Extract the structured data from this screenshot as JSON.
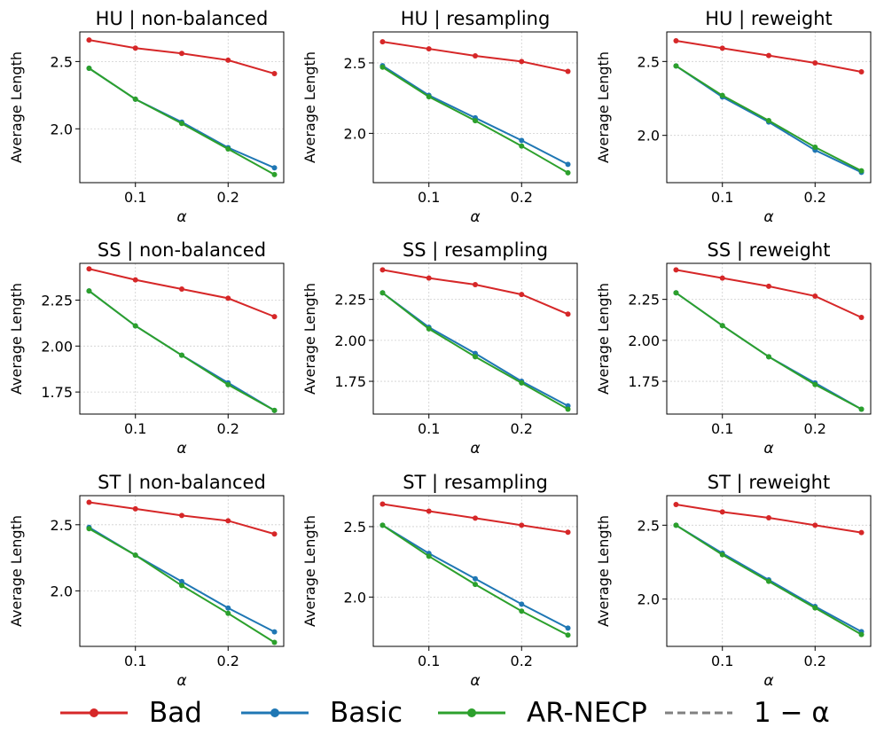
{
  "chart_data": [
    {
      "type": "line",
      "title": "HU | non-balanced",
      "xlabel": "α",
      "ylabel": "Average Length",
      "x": [
        0.05,
        0.1,
        0.15,
        0.2,
        0.25
      ],
      "xlim": [
        0.04,
        0.26
      ],
      "ylim": [
        1.6,
        2.72
      ],
      "xticks": [
        0.1,
        0.2
      ],
      "xtick_labels": [
        "0.1",
        "0.2"
      ],
      "yticks": [
        2.0,
        2.5
      ],
      "ytick_labels": [
        "2.0",
        "2.5"
      ],
      "series": [
        {
          "name": "Bad",
          "color": "#d62728",
          "values": [
            2.66,
            2.6,
            2.56,
            2.51,
            2.41
          ]
        },
        {
          "name": "Basic",
          "color": "#1f77b4",
          "values": [
            2.45,
            2.22,
            2.05,
            1.86,
            1.71
          ]
        },
        {
          "name": "AR-NECP",
          "color": "#2ca02c",
          "values": [
            2.45,
            2.22,
            2.04,
            1.85,
            1.66
          ]
        }
      ]
    },
    {
      "type": "line",
      "title": "HU | resampling",
      "xlabel": "α",
      "ylabel": "Average Length",
      "x": [
        0.05,
        0.1,
        0.15,
        0.2,
        0.25
      ],
      "xlim": [
        0.04,
        0.26
      ],
      "ylim": [
        1.65,
        2.72
      ],
      "xticks": [
        0.1,
        0.2
      ],
      "xtick_labels": [
        "0.1",
        "0.2"
      ],
      "yticks": [
        2.0,
        2.5
      ],
      "ytick_labels": [
        "2.0",
        "2.5"
      ],
      "series": [
        {
          "name": "Bad",
          "color": "#d62728",
          "values": [
            2.65,
            2.6,
            2.55,
            2.51,
            2.44
          ]
        },
        {
          "name": "Basic",
          "color": "#1f77b4",
          "values": [
            2.48,
            2.27,
            2.11,
            1.95,
            1.78
          ]
        },
        {
          "name": "AR-NECP",
          "color": "#2ca02c",
          "values": [
            2.47,
            2.26,
            2.09,
            1.91,
            1.72
          ]
        }
      ]
    },
    {
      "type": "line",
      "title": "HU | reweight",
      "xlabel": "α",
      "ylabel": "Average Length",
      "x": [
        0.05,
        0.1,
        0.15,
        0.2,
        0.25
      ],
      "xlim": [
        0.04,
        0.26
      ],
      "ylim": [
        1.68,
        2.7
      ],
      "xticks": [
        0.1,
        0.2
      ],
      "xtick_labels": [
        "0.1",
        "0.2"
      ],
      "yticks": [
        2.0,
        2.5
      ],
      "ytick_labels": [
        "2.0",
        "2.5"
      ],
      "series": [
        {
          "name": "Bad",
          "color": "#d62728",
          "values": [
            2.64,
            2.59,
            2.54,
            2.49,
            2.43
          ]
        },
        {
          "name": "Basic",
          "color": "#1f77b4",
          "values": [
            2.47,
            2.26,
            2.09,
            1.9,
            1.75
          ]
        },
        {
          "name": "AR-NECP",
          "color": "#2ca02c",
          "values": [
            2.47,
            2.27,
            2.1,
            1.92,
            1.76
          ]
        }
      ]
    },
    {
      "type": "line",
      "title": "SS | non-balanced",
      "xlabel": "α",
      "ylabel": "Average Length",
      "x": [
        0.05,
        0.1,
        0.15,
        0.2,
        0.25
      ],
      "xlim": [
        0.04,
        0.26
      ],
      "ylim": [
        1.63,
        2.45
      ],
      "xticks": [
        0.1,
        0.2
      ],
      "xtick_labels": [
        "0.1",
        "0.2"
      ],
      "yticks": [
        1.75,
        2.0,
        2.25
      ],
      "ytick_labels": [
        "1.75",
        "2.00",
        "2.25"
      ],
      "series": [
        {
          "name": "Bad",
          "color": "#d62728",
          "values": [
            2.42,
            2.36,
            2.31,
            2.26,
            2.16
          ]
        },
        {
          "name": "Basic",
          "color": "#1f77b4",
          "values": [
            2.3,
            2.11,
            1.95,
            1.8,
            1.65
          ]
        },
        {
          "name": "AR-NECP",
          "color": "#2ca02c",
          "values": [
            2.3,
            2.11,
            1.95,
            1.79,
            1.65
          ]
        }
      ]
    },
    {
      "type": "line",
      "title": "SS | resampling",
      "xlabel": "α",
      "ylabel": "Average Length",
      "x": [
        0.05,
        0.1,
        0.15,
        0.2,
        0.25
      ],
      "xlim": [
        0.04,
        0.26
      ],
      "ylim": [
        1.55,
        2.47
      ],
      "xticks": [
        0.1,
        0.2
      ],
      "xtick_labels": [
        "0.1",
        "0.2"
      ],
      "yticks": [
        1.75,
        2.0,
        2.25
      ],
      "ytick_labels": [
        "1.75",
        "2.00",
        "2.25"
      ],
      "series": [
        {
          "name": "Bad",
          "color": "#d62728",
          "values": [
            2.43,
            2.38,
            2.34,
            2.28,
            2.16
          ]
        },
        {
          "name": "Basic",
          "color": "#1f77b4",
          "values": [
            2.29,
            2.08,
            1.92,
            1.75,
            1.6
          ]
        },
        {
          "name": "AR-NECP",
          "color": "#2ca02c",
          "values": [
            2.29,
            2.07,
            1.9,
            1.74,
            1.58
          ]
        }
      ]
    },
    {
      "type": "line",
      "title": "SS | reweight",
      "xlabel": "α",
      "ylabel": "Average Length",
      "x": [
        0.05,
        0.1,
        0.15,
        0.2,
        0.25
      ],
      "xlim": [
        0.04,
        0.26
      ],
      "ylim": [
        1.55,
        2.47
      ],
      "xticks": [
        0.1,
        0.2
      ],
      "xtick_labels": [
        "0.1",
        "0.2"
      ],
      "yticks": [
        1.75,
        2.0,
        2.25
      ],
      "ytick_labels": [
        "1.75",
        "2.00",
        "2.25"
      ],
      "series": [
        {
          "name": "Bad",
          "color": "#d62728",
          "values": [
            2.43,
            2.38,
            2.33,
            2.27,
            2.14
          ]
        },
        {
          "name": "Basic",
          "color": "#1f77b4",
          "values": [
            2.29,
            2.09,
            1.9,
            1.74,
            1.58
          ]
        },
        {
          "name": "AR-NECP",
          "color": "#2ca02c",
          "values": [
            2.29,
            2.09,
            1.9,
            1.73,
            1.58
          ]
        }
      ]
    },
    {
      "type": "line",
      "title": "ST | non-balanced",
      "xlabel": "α",
      "ylabel": "Average Length",
      "x": [
        0.05,
        0.1,
        0.15,
        0.2,
        0.25
      ],
      "xlim": [
        0.04,
        0.26
      ],
      "ylim": [
        1.58,
        2.72
      ],
      "xticks": [
        0.1,
        0.2
      ],
      "xtick_labels": [
        "0.1",
        "0.2"
      ],
      "yticks": [
        2.0,
        2.5
      ],
      "ytick_labels": [
        "2.0",
        "2.5"
      ],
      "series": [
        {
          "name": "Bad",
          "color": "#d62728",
          "values": [
            2.67,
            2.62,
            2.57,
            2.53,
            2.43
          ]
        },
        {
          "name": "Basic",
          "color": "#1f77b4",
          "values": [
            2.48,
            2.27,
            2.07,
            1.87,
            1.69
          ]
        },
        {
          "name": "AR-NECP",
          "color": "#2ca02c",
          "values": [
            2.47,
            2.27,
            2.04,
            1.83,
            1.61
          ]
        }
      ]
    },
    {
      "type": "line",
      "title": "ST | resampling",
      "xlabel": "α",
      "ylabel": "Average Length",
      "x": [
        0.05,
        0.1,
        0.15,
        0.2,
        0.25
      ],
      "xlim": [
        0.04,
        0.26
      ],
      "ylim": [
        1.65,
        2.72
      ],
      "xticks": [
        0.1,
        0.2
      ],
      "xtick_labels": [
        "0.1",
        "0.2"
      ],
      "yticks": [
        2.0,
        2.5
      ],
      "ytick_labels": [
        "2.0",
        "2.5"
      ],
      "series": [
        {
          "name": "Bad",
          "color": "#d62728",
          "values": [
            2.66,
            2.61,
            2.56,
            2.51,
            2.46
          ]
        },
        {
          "name": "Basic",
          "color": "#1f77b4",
          "values": [
            2.51,
            2.31,
            2.13,
            1.95,
            1.78
          ]
        },
        {
          "name": "AR-NECP",
          "color": "#2ca02c",
          "values": [
            2.51,
            2.29,
            2.09,
            1.9,
            1.73
          ]
        }
      ]
    },
    {
      "type": "line",
      "title": "ST | reweight",
      "xlabel": "α",
      "ylabel": "Average Length",
      "x": [
        0.05,
        0.1,
        0.15,
        0.2,
        0.25
      ],
      "xlim": [
        0.04,
        0.26
      ],
      "ylim": [
        1.68,
        2.7
      ],
      "xticks": [
        0.1,
        0.2
      ],
      "xtick_labels": [
        "0.1",
        "0.2"
      ],
      "yticks": [
        2.0,
        2.5
      ],
      "ytick_labels": [
        "2.0",
        "2.5"
      ],
      "series": [
        {
          "name": "Bad",
          "color": "#d62728",
          "values": [
            2.64,
            2.59,
            2.55,
            2.5,
            2.45
          ]
        },
        {
          "name": "Basic",
          "color": "#1f77b4",
          "values": [
            2.5,
            2.31,
            2.13,
            1.95,
            1.78
          ]
        },
        {
          "name": "AR-NECP",
          "color": "#2ca02c",
          "values": [
            2.5,
            2.3,
            2.12,
            1.94,
            1.76
          ]
        }
      ]
    }
  ],
  "legend": {
    "items": [
      {
        "label": "Bad",
        "color": "#d62728",
        "style": "solid-marker"
      },
      {
        "label": "Basic",
        "color": "#1f77b4",
        "style": "solid-marker"
      },
      {
        "label": "AR-NECP",
        "color": "#2ca02c",
        "style": "solid-marker"
      },
      {
        "label": "1 − α",
        "color": "#808080",
        "style": "dashed"
      }
    ]
  }
}
